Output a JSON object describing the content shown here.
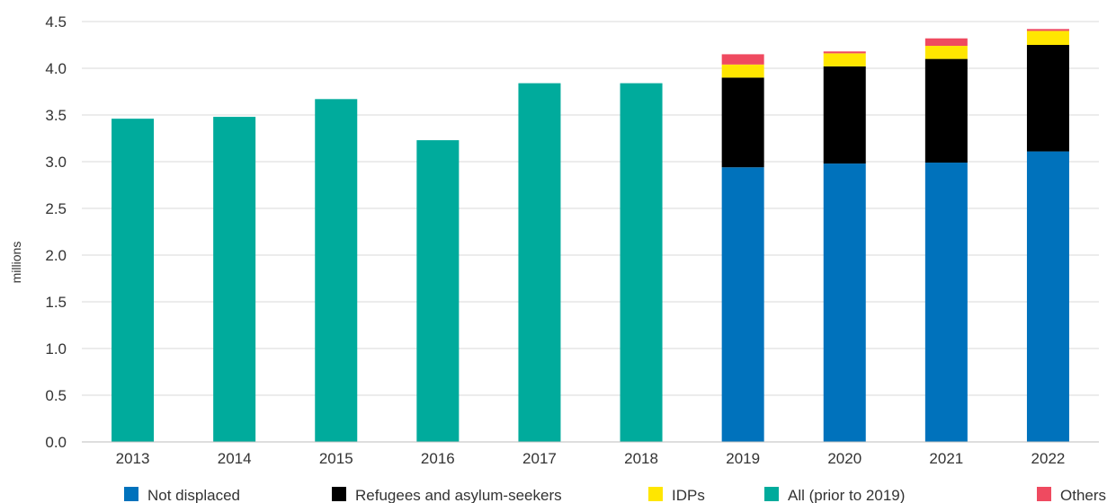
{
  "chart_data": {
    "type": "bar",
    "stacked": true,
    "ylabel": "millions",
    "ylim": [
      0,
      4.5
    ],
    "yticks": [
      "0.0",
      "0.5",
      "1.0",
      "1.5",
      "2.0",
      "2.5",
      "3.0",
      "3.5",
      "4.0",
      "4.5"
    ],
    "categories": [
      "2013",
      "2014",
      "2015",
      "2016",
      "2017",
      "2018",
      "2019",
      "2020",
      "2021",
      "2022"
    ],
    "grid": "horizontal",
    "legend_position": "bottom",
    "series": [
      {
        "name": "Not displaced",
        "color": "#0072bc",
        "values": [
          0,
          0,
          0,
          0,
          0,
          0,
          2.94,
          2.98,
          2.99,
          3.11
        ]
      },
      {
        "name": "Refugees and asylum-seekers",
        "color": "#000000",
        "values": [
          0,
          0,
          0,
          0,
          0,
          0,
          0.96,
          1.04,
          1.11,
          1.14
        ]
      },
      {
        "name": "IDPs",
        "color": "#ffe600",
        "values": [
          0,
          0,
          0,
          0,
          0,
          0,
          0.14,
          0.14,
          0.14,
          0.15
        ]
      },
      {
        "name": "All (prior to 2019)",
        "color": "#00ab9c",
        "values": [
          3.46,
          3.48,
          3.67,
          3.23,
          3.84,
          3.84,
          0,
          0,
          0,
          0
        ]
      },
      {
        "name": "Others",
        "color": "#ef4a60",
        "values": [
          0,
          0,
          0,
          0,
          0,
          0,
          0.11,
          0.02,
          0.08,
          0.02
        ]
      }
    ],
    "stack_order": [
      "All (prior to 2019)",
      "Not displaced",
      "Refugees and asylum-seekers",
      "IDPs",
      "Others"
    ]
  }
}
